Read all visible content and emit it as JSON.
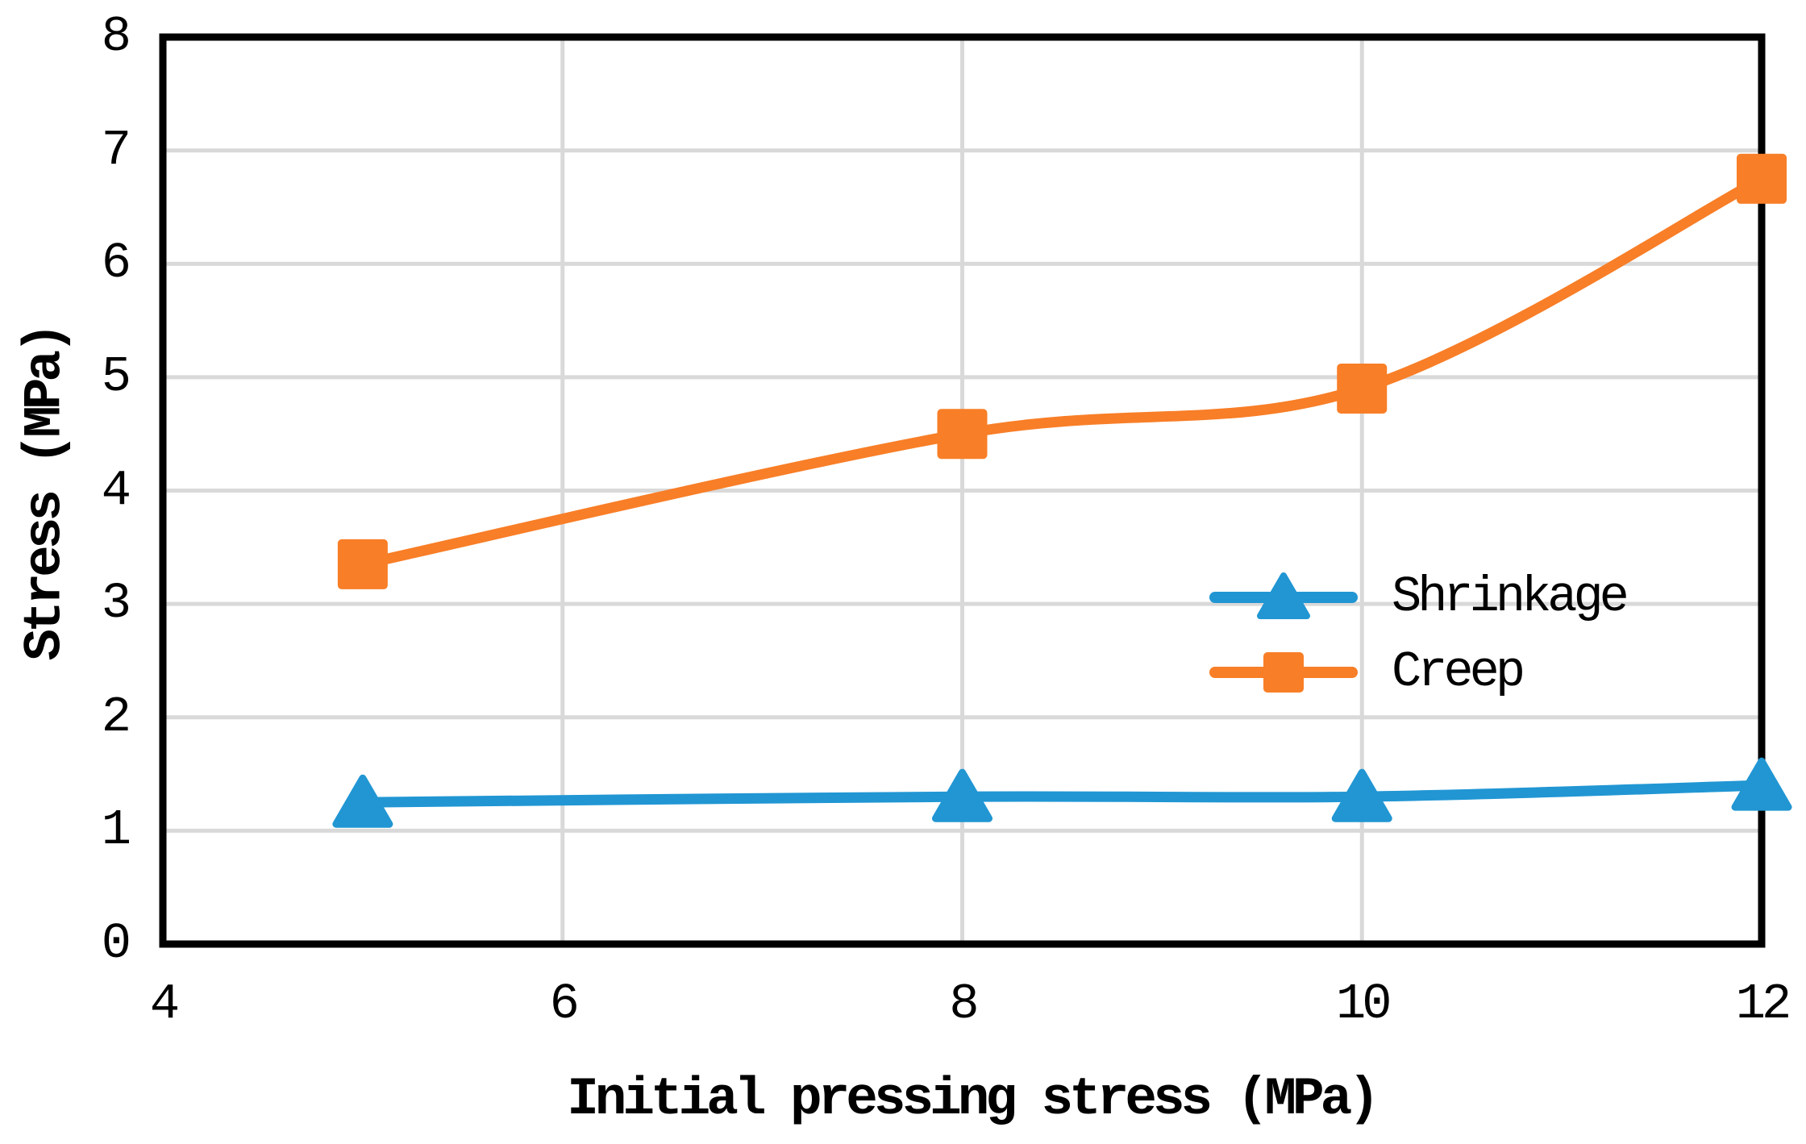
{
  "chart_data": {
    "type": "line",
    "title": "",
    "xlabel": "Initial pressing stress (MPa)",
    "ylabel": "Stress (MPa)",
    "x": [
      5,
      8,
      10,
      12
    ],
    "series": [
      {
        "name": "Shrinkage",
        "color": "#2196D3",
        "marker": "triangle",
        "line_style": "smooth",
        "values": [
          1.25,
          1.3,
          1.3,
          1.4
        ]
      },
      {
        "name": "Creep",
        "color": "#F87E27",
        "marker": "square",
        "line_style": "smooth",
        "values": [
          3.35,
          4.5,
          4.9,
          6.75
        ]
      }
    ],
    "xlim": [
      4,
      12
    ],
    "ylim": [
      0,
      8
    ],
    "xticks": [
      4,
      6,
      8,
      10,
      12
    ],
    "yticks": [
      0,
      1,
      2,
      3,
      4,
      5,
      6,
      7,
      8
    ],
    "grid": true,
    "grid_color": "#D9D9D9",
    "axis_color": "#000000",
    "plot_border": "full-rectangle",
    "legend_position": "center-right"
  }
}
